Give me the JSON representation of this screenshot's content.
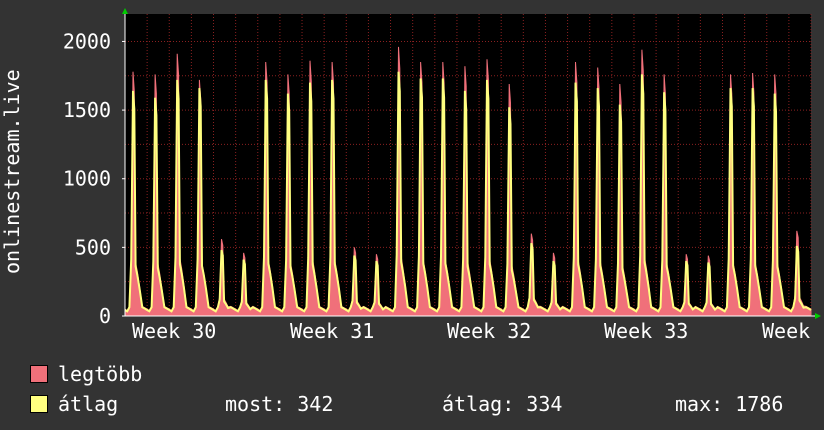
{
  "colors": {
    "background": "#333333",
    "plot_background": "#000000",
    "grid": "#8a2020",
    "max_series": "#f0707a",
    "avg_series": "#ffff80",
    "axis_arrow": "#00cc00"
  },
  "legend": {
    "max_label": "legtöbb",
    "avg_label": "átlag",
    "now": "most: 342",
    "avg": "átlag: 334",
    "max": "max: 1786"
  },
  "chart_data": {
    "type": "area",
    "ylabel": "onlinestream.live",
    "ylim": [
      0,
      2200
    ],
    "yticks": [
      0,
      500,
      1000,
      1500,
      2000
    ],
    "xticks": [
      "Week 30",
      "Week 31",
      "Week 32",
      "Week 33",
      "Week"
    ],
    "grid": true,
    "legend_position": "bottom-left",
    "series": [
      {
        "name": "legtöbb",
        "peaks": [
          1780,
          1760,
          1910,
          1720,
          560,
          460,
          1850,
          1760,
          1860,
          1850,
          500,
          450,
          1960,
          1850,
          1850,
          1820,
          1870,
          1690,
          600,
          460,
          1850,
          1810,
          1690,
          1940,
          1760,
          450,
          440,
          1760,
          1770,
          1760,
          620
        ]
      },
      {
        "name": "átlag",
        "peaks": [
          1640,
          1590,
          1720,
          1660,
          480,
          410,
          1720,
          1620,
          1700,
          1720,
          440,
          400,
          1780,
          1730,
          1730,
          1640,
          1720,
          1520,
          530,
          400,
          1700,
          1660,
          1540,
          1760,
          1630,
          400,
          390,
          1660,
          1660,
          1620,
          510
        ]
      }
    ]
  }
}
